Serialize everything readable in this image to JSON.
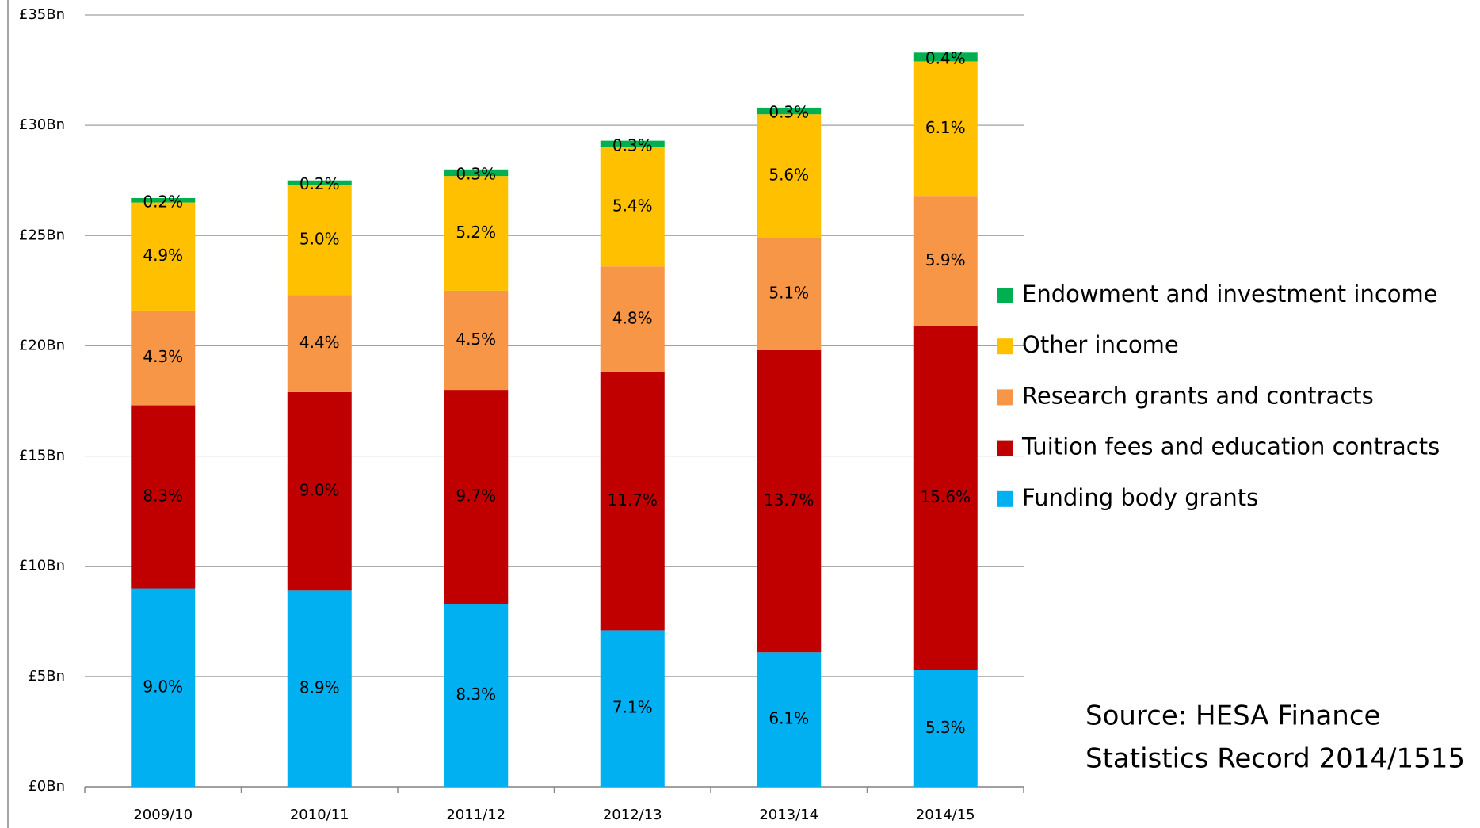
{
  "chart_data": {
    "type": "stacked_bar",
    "categories": [
      "2009/10",
      "2010/11",
      "2011/12",
      "2012/13",
      "2013/14",
      "2014/15"
    ],
    "series": [
      {
        "name": "Funding body grants",
        "color": "#00b0f0",
        "values": [
          9.0,
          8.9,
          8.3,
          7.1,
          6.1,
          5.3
        ],
        "value_labels": [
          "9.0%",
          "8.9%",
          "8.3%",
          "7.1%",
          "6.1%",
          "5.3%"
        ]
      },
      {
        "name": "Tuition fees and education contracts",
        "color": "#c00000",
        "values": [
          8.3,
          9.0,
          9.7,
          11.7,
          13.7,
          15.6
        ],
        "value_labels": [
          "8.3%",
          "9.0%",
          "9.7%",
          "11.7%",
          "13.7%",
          "15.6%"
        ]
      },
      {
        "name": "Research grants and contracts",
        "color": "#f79646",
        "values": [
          4.3,
          4.4,
          4.5,
          4.8,
          5.1,
          5.9
        ],
        "value_labels": [
          "4.3%",
          "4.4%",
          "4.5%",
          "4.8%",
          "5.1%",
          "5.9%"
        ]
      },
      {
        "name": "Other income",
        "color": "#ffc000",
        "values": [
          4.9,
          5.0,
          5.2,
          5.4,
          5.6,
          6.1
        ],
        "value_labels": [
          "4.9%",
          "5.0%",
          "5.2%",
          "5.4%",
          "5.6%",
          "6.1%"
        ]
      },
      {
        "name": "Endowment and investment income",
        "color": "#00b050",
        "values": [
          0.2,
          0.2,
          0.3,
          0.3,
          0.3,
          0.4
        ],
        "value_labels": [
          "0.2%",
          "0.2%",
          "0.3%",
          "0.3%",
          "0.3%",
          "0.4%"
        ]
      }
    ],
    "ylim": [
      0,
      35
    ],
    "yticks": [
      {
        "value": 0,
        "label": "£0Bn"
      },
      {
        "value": 5,
        "label": "£5Bn"
      },
      {
        "value": 10,
        "label": "£10Bn"
      },
      {
        "value": 15,
        "label": "£15Bn"
      },
      {
        "value": 20,
        "label": "£20Bn"
      },
      {
        "value": 25,
        "label": "£25Bn"
      },
      {
        "value": 30,
        "label": "£30Bn"
      },
      {
        "value": 35,
        "label": "£35Bn"
      }
    ],
    "grid": true,
    "legend": "right",
    "annotations": [
      "Source: HESA Finance",
      "Statistics  Record 2014/1515"
    ]
  }
}
